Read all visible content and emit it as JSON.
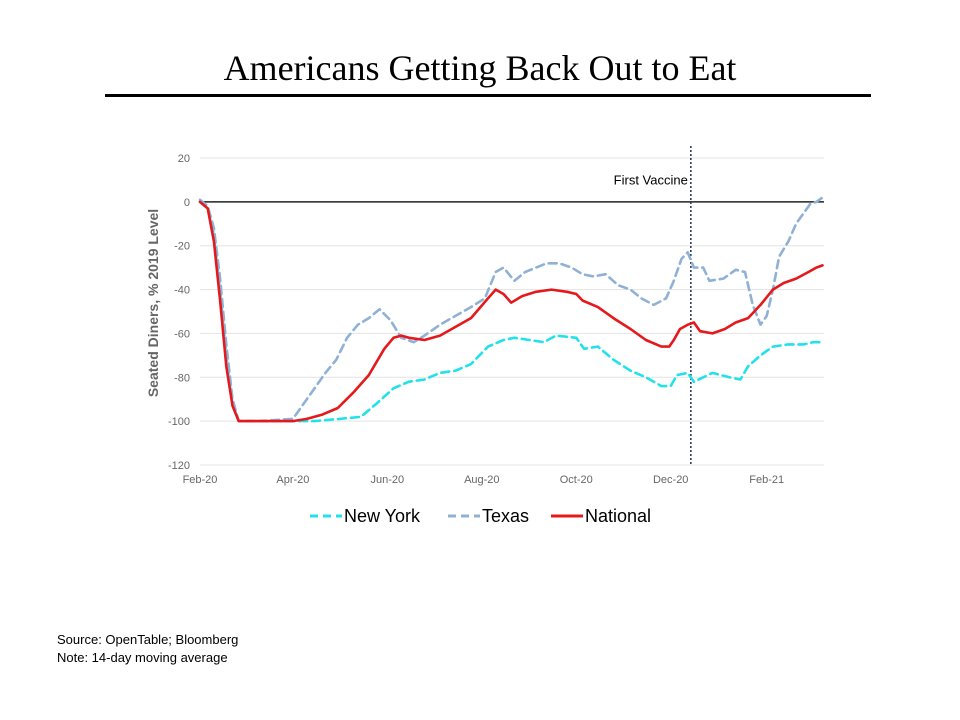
{
  "slide": {
    "title": "Americans  Getting Back Out to Eat",
    "source_line": "Source: OpenTable; Bloomberg",
    "note_line": "Note: 14-day moving average"
  },
  "chart_data": {
    "type": "line",
    "title": "",
    "xlabel": "",
    "ylabel": "Seated Diners, % 2019 Level",
    "ylim": [
      -120,
      20
    ],
    "yticks": [
      20,
      0,
      -20,
      -40,
      -60,
      -80,
      -100,
      -120
    ],
    "xlim": [
      "2020-02-01",
      "2021-03-10"
    ],
    "xticks": [
      {
        "label": "Feb-20",
        "date": "2020-02-01"
      },
      {
        "label": "Apr-20",
        "date": "2020-04-01"
      },
      {
        "label": "Jun-20",
        "date": "2020-06-01"
      },
      {
        "label": "Aug-20",
        "date": "2020-08-01"
      },
      {
        "label": "Oct-20",
        "date": "2020-10-01"
      },
      {
        "label": "Dec-20",
        "date": "2020-12-01"
      },
      {
        "label": "Feb-21",
        "date": "2021-02-01"
      }
    ],
    "grid": "horizontal",
    "legend_position": "bottom",
    "annotation": {
      "label": "First Vaccine",
      "date": "2020-12-14"
    },
    "series": [
      {
        "name": "New York",
        "color": "#22e1ea",
        "style": "dashed",
        "points": [
          [
            "2020-02-01",
            0
          ],
          [
            "2020-02-06",
            -3
          ],
          [
            "2020-02-10",
            -15
          ],
          [
            "2020-02-14",
            -40
          ],
          [
            "2020-02-18",
            -70
          ],
          [
            "2020-02-22",
            -92
          ],
          [
            "2020-02-26",
            -100
          ],
          [
            "2020-03-10",
            -100
          ],
          [
            "2020-04-01",
            -100
          ],
          [
            "2020-04-15",
            -100
          ],
          [
            "2020-05-01",
            -99
          ],
          [
            "2020-05-15",
            -98
          ],
          [
            "2020-05-25",
            -92
          ],
          [
            "2020-06-05",
            -85
          ],
          [
            "2020-06-15",
            -82
          ],
          [
            "2020-06-25",
            -81
          ],
          [
            "2020-07-05",
            -78
          ],
          [
            "2020-07-15",
            -77
          ],
          [
            "2020-07-25",
            -74
          ],
          [
            "2020-08-05",
            -66
          ],
          [
            "2020-08-15",
            -63
          ],
          [
            "2020-08-22",
            -62
          ],
          [
            "2020-09-01",
            -63
          ],
          [
            "2020-09-10",
            -64
          ],
          [
            "2020-09-18",
            -61
          ],
          [
            "2020-10-01",
            -62
          ],
          [
            "2020-10-06",
            -67
          ],
          [
            "2020-10-15",
            -66
          ],
          [
            "2020-10-25",
            -72
          ],
          [
            "2020-11-05",
            -77
          ],
          [
            "2020-11-15",
            -80
          ],
          [
            "2020-11-25",
            -84
          ],
          [
            "2020-12-01",
            -84
          ],
          [
            "2020-12-05",
            -79
          ],
          [
            "2020-12-12",
            -78
          ],
          [
            "2020-12-16",
            -82
          ],
          [
            "2020-12-22",
            -80
          ],
          [
            "2020-12-28",
            -78
          ],
          [
            "2021-01-08",
            -80
          ],
          [
            "2021-01-15",
            -81
          ],
          [
            "2021-01-20",
            -75
          ],
          [
            "2021-01-28",
            -70
          ],
          [
            "2021-02-05",
            -66
          ],
          [
            "2021-02-15",
            -65
          ],
          [
            "2021-02-25",
            -65
          ],
          [
            "2021-03-03",
            -64
          ],
          [
            "2021-03-09",
            -64
          ]
        ]
      },
      {
        "name": "Texas",
        "color": "#8fb1d6",
        "style": "dashed",
        "points": [
          [
            "2020-02-01",
            1
          ],
          [
            "2020-02-06",
            -2
          ],
          [
            "2020-02-10",
            -12
          ],
          [
            "2020-02-14",
            -35
          ],
          [
            "2020-02-18",
            -65
          ],
          [
            "2020-02-22",
            -90
          ],
          [
            "2020-02-26",
            -100
          ],
          [
            "2020-03-10",
            -100
          ],
          [
            "2020-04-01",
            -99
          ],
          [
            "2020-04-08",
            -92
          ],
          [
            "2020-04-15",
            -85
          ],
          [
            "2020-04-22",
            -78
          ],
          [
            "2020-04-29",
            -72
          ],
          [
            "2020-05-06",
            -62
          ],
          [
            "2020-05-13",
            -56
          ],
          [
            "2020-05-20",
            -53
          ],
          [
            "2020-05-27",
            -49
          ],
          [
            "2020-06-03",
            -54
          ],
          [
            "2020-06-10",
            -62
          ],
          [
            "2020-06-18",
            -64
          ],
          [
            "2020-06-25",
            -61
          ],
          [
            "2020-07-05",
            -56
          ],
          [
            "2020-07-15",
            -52
          ],
          [
            "2020-07-25",
            -48
          ],
          [
            "2020-08-03",
            -44
          ],
          [
            "2020-08-10",
            -32
          ],
          [
            "2020-08-15",
            -30
          ],
          [
            "2020-08-22",
            -36
          ],
          [
            "2020-08-29",
            -32
          ],
          [
            "2020-09-05",
            -30
          ],
          [
            "2020-09-12",
            -28
          ],
          [
            "2020-09-20",
            -28
          ],
          [
            "2020-09-28",
            -30
          ],
          [
            "2020-10-05",
            -33
          ],
          [
            "2020-10-12",
            -34
          ],
          [
            "2020-10-20",
            -33
          ],
          [
            "2020-10-28",
            -38
          ],
          [
            "2020-11-05",
            -40
          ],
          [
            "2020-11-12",
            -44
          ],
          [
            "2020-11-20",
            -47
          ],
          [
            "2020-11-28",
            -44
          ],
          [
            "2020-12-03",
            -36
          ],
          [
            "2020-12-08",
            -26
          ],
          [
            "2020-12-12",
            -23
          ],
          [
            "2020-12-16",
            -30
          ],
          [
            "2020-12-22",
            -30
          ],
          [
            "2020-12-26",
            -36
          ],
          [
            "2021-01-04",
            -35
          ],
          [
            "2021-01-12",
            -31
          ],
          [
            "2021-01-18",
            -32
          ],
          [
            "2021-01-23",
            -47
          ],
          [
            "2021-01-28",
            -56
          ],
          [
            "2021-02-01",
            -52
          ],
          [
            "2021-02-05",
            -40
          ],
          [
            "2021-02-09",
            -25
          ],
          [
            "2021-02-15",
            -18
          ],
          [
            "2021-02-20",
            -10
          ],
          [
            "2021-02-25",
            -5
          ],
          [
            "2021-03-01",
            -1
          ],
          [
            "2021-03-05",
            0
          ],
          [
            "2021-03-09",
            2
          ]
        ]
      },
      {
        "name": "National",
        "color": "#e5191b",
        "style": "solid",
        "points": [
          [
            "2020-02-01",
            0
          ],
          [
            "2020-02-06",
            -3
          ],
          [
            "2020-02-10",
            -18
          ],
          [
            "2020-02-14",
            -45
          ],
          [
            "2020-02-18",
            -75
          ],
          [
            "2020-02-22",
            -93
          ],
          [
            "2020-02-26",
            -100
          ],
          [
            "2020-03-10",
            -100
          ],
          [
            "2020-04-01",
            -100
          ],
          [
            "2020-04-10",
            -99
          ],
          [
            "2020-04-20",
            -97
          ],
          [
            "2020-04-30",
            -94
          ],
          [
            "2020-05-10",
            -87
          ],
          [
            "2020-05-20",
            -79
          ],
          [
            "2020-05-30",
            -67
          ],
          [
            "2020-06-05",
            -62
          ],
          [
            "2020-06-10",
            -61
          ],
          [
            "2020-06-15",
            -62
          ],
          [
            "2020-06-25",
            -63
          ],
          [
            "2020-07-05",
            -61
          ],
          [
            "2020-07-15",
            -57
          ],
          [
            "2020-07-25",
            -53
          ],
          [
            "2020-08-05",
            -44
          ],
          [
            "2020-08-10",
            -40
          ],
          [
            "2020-08-15",
            -42
          ],
          [
            "2020-08-20",
            -46
          ],
          [
            "2020-08-27",
            -43
          ],
          [
            "2020-09-05",
            -41
          ],
          [
            "2020-09-15",
            -40
          ],
          [
            "2020-09-25",
            -41
          ],
          [
            "2020-10-01",
            -42
          ],
          [
            "2020-10-05",
            -45
          ],
          [
            "2020-10-15",
            -48
          ],
          [
            "2020-10-25",
            -53
          ],
          [
            "2020-11-05",
            -58
          ],
          [
            "2020-11-15",
            -63
          ],
          [
            "2020-11-25",
            -66
          ],
          [
            "2020-11-30",
            -66
          ],
          [
            "2020-12-03",
            -63
          ],
          [
            "2020-12-07",
            -58
          ],
          [
            "2020-12-12",
            -56
          ],
          [
            "2020-12-16",
            -55
          ],
          [
            "2020-12-20",
            -59
          ],
          [
            "2020-12-28",
            -60
          ],
          [
            "2021-01-05",
            -58
          ],
          [
            "2021-01-12",
            -55
          ],
          [
            "2021-01-20",
            -53
          ],
          [
            "2021-01-28",
            -47
          ],
          [
            "2021-02-05",
            -40
          ],
          [
            "2021-02-12",
            -37
          ],
          [
            "2021-02-20",
            -35
          ],
          [
            "2021-02-28",
            -32
          ],
          [
            "2021-03-05",
            -30
          ],
          [
            "2021-03-09",
            -29
          ]
        ]
      }
    ]
  }
}
